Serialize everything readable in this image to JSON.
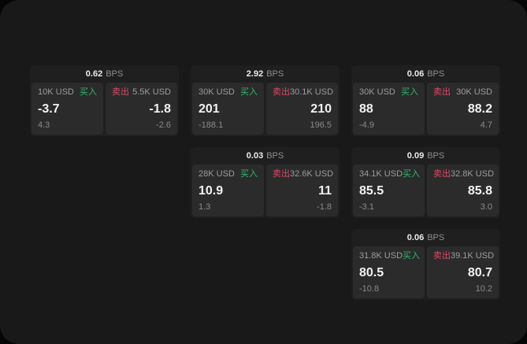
{
  "labels": {
    "bps_unit": "BPS",
    "buy": "买入",
    "sell": "卖出"
  },
  "colors": {
    "buy_green": "#35b46f",
    "sell_red": "#dc4a67",
    "frame_bg": "#191919",
    "card_bg": "#1f1f1f",
    "panel_bg": "#2b2b2b"
  },
  "cards": [
    {
      "bps": "0.62",
      "buy": {
        "size": "10K USD",
        "price": "-3.7",
        "sub": "4.3"
      },
      "sell": {
        "size": "5.5K USD",
        "price": "-1.8",
        "sub": "-2.6"
      }
    },
    {
      "bps": "2.92",
      "buy": {
        "size": "30K USD",
        "price": "201",
        "sub": "-188.1"
      },
      "sell": {
        "size": "30.1K USD",
        "price": "210",
        "sub": "196.5"
      }
    },
    {
      "bps": "0.06",
      "buy": {
        "size": "30K USD",
        "price": "88",
        "sub": "-4.9"
      },
      "sell": {
        "size": "30K USD",
        "price": "88.2",
        "sub": "4.7"
      }
    },
    {
      "bps": "0.03",
      "buy": {
        "size": "28K USD",
        "price": "10.9",
        "sub": "1.3"
      },
      "sell": {
        "size": "32.6K USD",
        "price": "11",
        "sub": "-1.8"
      }
    },
    {
      "bps": "0.09",
      "buy": {
        "size": "34.1K USD",
        "price": "85.5",
        "sub": "-3.1"
      },
      "sell": {
        "size": "32.8K USD",
        "price": "85.8",
        "sub": "3.0"
      }
    },
    {
      "bps": "0.06",
      "buy": {
        "size": "31.8K USD",
        "price": "80.5",
        "sub": "-10.8"
      },
      "sell": {
        "size": "39.1K USD",
        "price": "80.7",
        "sub": "10.2"
      }
    }
  ]
}
